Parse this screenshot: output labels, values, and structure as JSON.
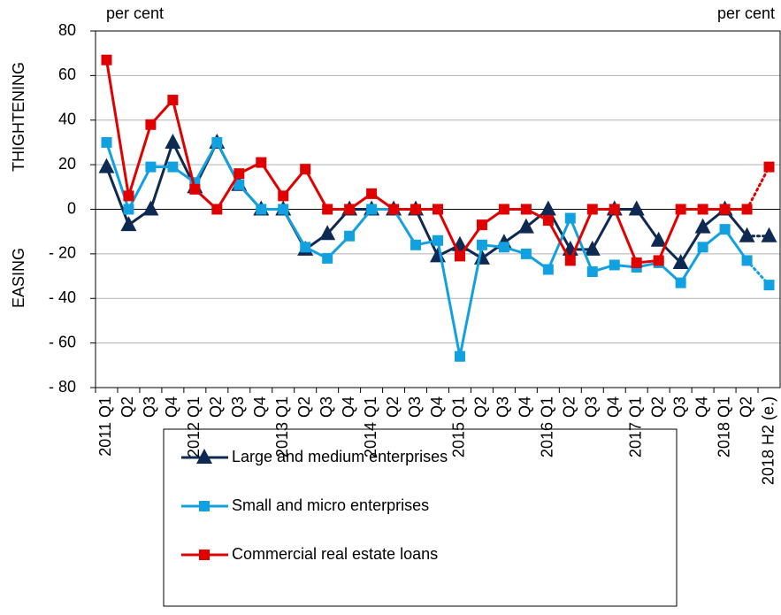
{
  "chart_data": {
    "type": "line",
    "unit_left": "per cent",
    "unit_right": "per cent",
    "y_label_top": "THIGHTENING",
    "y_label_bottom": "EASING",
    "categories": [
      "2011 Q1",
      "Q2",
      "Q3",
      "Q4",
      "2012 Q1",
      "Q2",
      "Q3",
      "Q4",
      "2013 Q1",
      "Q2",
      "Q3",
      "Q4",
      "2014 Q1",
      "Q2",
      "Q3",
      "Q4",
      "2015 Q1",
      "Q2",
      "Q3",
      "Q4",
      "2016 Q1",
      "Q2",
      "Q3",
      "Q4",
      "2017 Q1",
      "Q2",
      "Q3",
      "Q4",
      "2018 Q1",
      "Q2",
      "2018 H2 (e.)"
    ],
    "series": [
      {
        "name": "Large and medium enterprises",
        "color": "#0f2a52",
        "marker": "triangle",
        "values": [
          19,
          -7,
          0,
          30,
          10,
          30,
          11,
          0,
          0,
          -18,
          -11,
          0,
          0,
          0,
          0,
          -21,
          -16,
          -22,
          -15,
          -8,
          0,
          -18,
          -18,
          0,
          0,
          -14,
          -24,
          -8,
          0,
          -12,
          -12
        ]
      },
      {
        "name": "Small and micro enterprises",
        "color": "#12a1e0",
        "marker": "square",
        "values": [
          30,
          0,
          19,
          19,
          12,
          30,
          11,
          0,
          0,
          -17,
          -22,
          -12,
          0,
          0,
          -16,
          -14,
          -66,
          -16,
          -17,
          -20,
          -27,
          -4,
          -28,
          -25,
          -26,
          -24,
          -33,
          -17,
          -9,
          -23,
          -34
        ]
      },
      {
        "name": "Commercial real estate loans",
        "color": "#e00000",
        "marker": "square",
        "values": [
          67,
          6,
          38,
          49,
          9,
          0,
          16,
          21,
          6,
          18,
          0,
          0,
          7,
          0,
          0,
          0,
          -21,
          -7,
          0,
          0,
          -5,
          -23,
          0,
          0,
          -24,
          -23,
          0,
          0,
          0,
          0,
          19
        ]
      }
    ],
    "last_segment_dotted": true,
    "ylim": [
      -80,
      80
    ],
    "yticks": [
      {
        "value": -80,
        "label": "- 80"
      },
      {
        "value": -60,
        "label": "- 60"
      },
      {
        "value": -40,
        "label": "- 40"
      },
      {
        "value": -20,
        "label": "- 20"
      },
      0,
      20,
      40,
      60,
      80
    ],
    "grid": true,
    "legend": "bottom"
  }
}
